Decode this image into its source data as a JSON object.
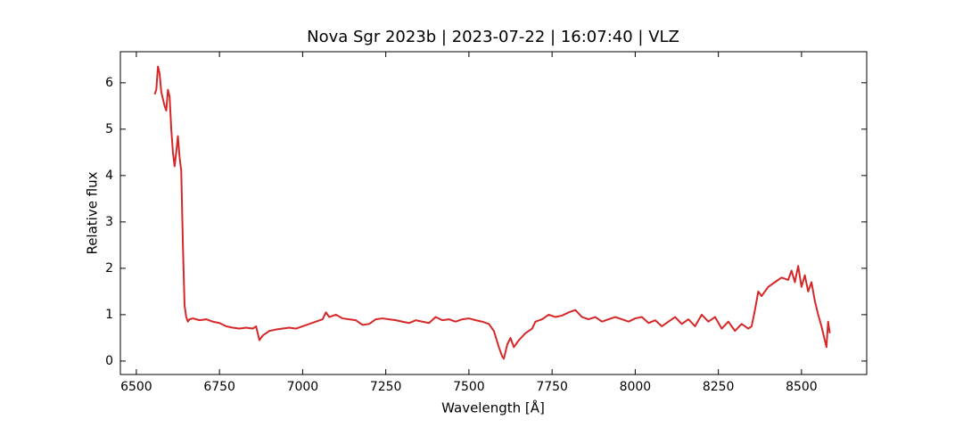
{
  "chart_data": {
    "type": "line",
    "title": "Nova Sgr 2023b | 2023-07-22 | 16:07:40 | VLZ",
    "x_label": "Wavelength [Å]",
    "y_label": "Relative flux",
    "xlim": [
      6452,
      8696
    ],
    "ylim": [
      -0.29,
      6.67
    ],
    "xticks": [
      6500,
      6750,
      7000,
      7250,
      7500,
      7750,
      8000,
      8250,
      8500
    ],
    "yticks": [
      0,
      1,
      2,
      3,
      4,
      5,
      6
    ],
    "grid": false,
    "series": [
      {
        "name": "Nova Sgr 2023b",
        "color": "#d62728",
        "x": [
          6555,
          6560,
          6565,
          6570,
          6575,
          6580,
          6585,
          6590,
          6595,
          6600,
          6605,
          6610,
          6615,
          6620,
          6625,
          6630,
          6635,
          6640,
          6645,
          6650,
          6655,
          6660,
          6670,
          6690,
          6710,
          6730,
          6750,
          6770,
          6790,
          6810,
          6830,
          6850,
          6860,
          6870,
          6880,
          6900,
          6920,
          6940,
          6960,
          6980,
          7000,
          7020,
          7040,
          7060,
          7070,
          7080,
          7100,
          7120,
          7140,
          7160,
          7180,
          7200,
          7220,
          7240,
          7260,
          7280,
          7300,
          7320,
          7340,
          7360,
          7380,
          7400,
          7420,
          7440,
          7460,
          7480,
          7500,
          7520,
          7540,
          7560,
          7575,
          7590,
          7600,
          7605,
          7615,
          7625,
          7635,
          7650,
          7670,
          7690,
          7700,
          7720,
          7740,
          7760,
          7780,
          7800,
          7820,
          7840,
          7860,
          7880,
          7900,
          7920,
          7940,
          7960,
          7980,
          8000,
          8020,
          8040,
          8060,
          8080,
          8100,
          8120,
          8140,
          8160,
          8180,
          8200,
          8220,
          8240,
          8260,
          8280,
          8300,
          8320,
          8340,
          8350,
          8360,
          8370,
          8380,
          8400,
          8420,
          8440,
          8460,
          8470,
          8480,
          8490,
          8500,
          8510,
          8520,
          8530,
          8540,
          8550,
          8560,
          8570,
          8575,
          8580,
          8585
        ],
        "values": [
          5.75,
          5.85,
          6.35,
          6.2,
          5.8,
          5.65,
          5.5,
          5.4,
          5.85,
          5.7,
          5.0,
          4.5,
          4.2,
          4.5,
          4.85,
          4.4,
          4.1,
          2.5,
          1.2,
          0.95,
          0.85,
          0.9,
          0.92,
          0.88,
          0.9,
          0.85,
          0.82,
          0.75,
          0.72,
          0.7,
          0.72,
          0.7,
          0.75,
          0.45,
          0.55,
          0.65,
          0.68,
          0.7,
          0.72,
          0.7,
          0.75,
          0.8,
          0.85,
          0.9,
          1.05,
          0.95,
          1.0,
          0.92,
          0.9,
          0.88,
          0.78,
          0.8,
          0.9,
          0.92,
          0.9,
          0.88,
          0.85,
          0.82,
          0.88,
          0.85,
          0.82,
          0.95,
          0.88,
          0.9,
          0.85,
          0.9,
          0.92,
          0.88,
          0.85,
          0.8,
          0.65,
          0.3,
          0.1,
          0.05,
          0.35,
          0.5,
          0.3,
          0.45,
          0.6,
          0.7,
          0.85,
          0.9,
          1.0,
          0.95,
          0.98,
          1.05,
          1.1,
          0.95,
          0.9,
          0.95,
          0.85,
          0.9,
          0.95,
          0.9,
          0.85,
          0.92,
          0.95,
          0.82,
          0.88,
          0.75,
          0.85,
          0.95,
          0.8,
          0.9,
          0.75,
          1.0,
          0.85,
          0.95,
          0.7,
          0.85,
          0.65,
          0.8,
          0.7,
          0.75,
          1.1,
          1.5,
          1.4,
          1.6,
          1.7,
          1.8,
          1.75,
          1.95,
          1.7,
          2.05,
          1.6,
          1.85,
          1.5,
          1.7,
          1.3,
          1.0,
          0.75,
          0.45,
          0.3,
          0.85,
          0.6
        ]
      }
    ]
  }
}
